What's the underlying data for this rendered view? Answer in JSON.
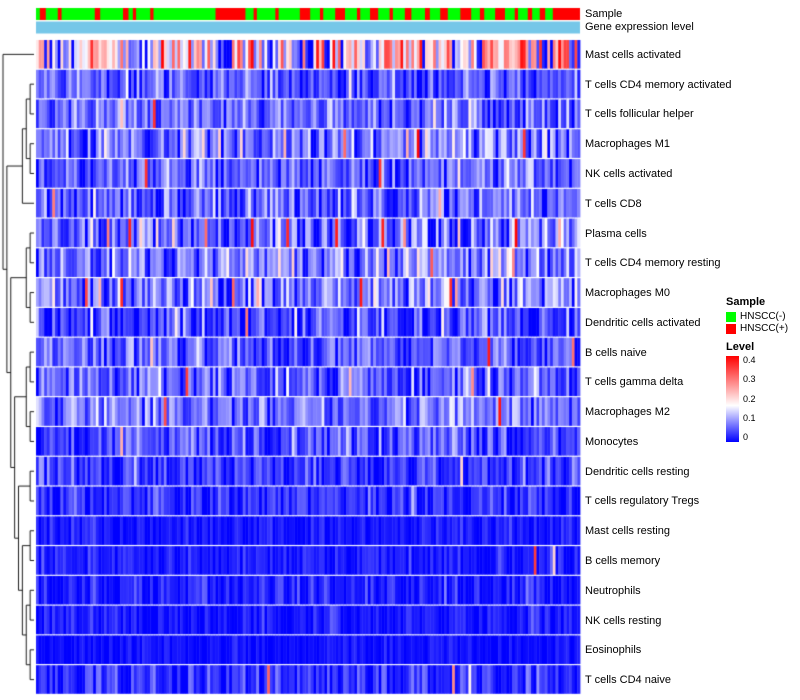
{
  "annotation_bars": {
    "sample_label": "Sample",
    "expression_label": "Gene expression level",
    "expression_color": "#76C7E8"
  },
  "chart_data": {
    "type": "heatmap",
    "n_samples": 200,
    "color_scale": {
      "min": 0,
      "mid": 0.17,
      "max": 0.4,
      "min_color": "#0000FF",
      "mid_color": "#FFFFFF",
      "max_color": "#FF0000"
    },
    "sample_groups": [
      {
        "label": "HNSCC(-)",
        "color": "#00FF00"
      },
      {
        "label": "HNSCC(+)",
        "color": "#FF0000"
      }
    ],
    "annotation_red_segments": [
      [
        0.007,
        0.018
      ],
      [
        0.04,
        0.047
      ],
      [
        0.108,
        0.118
      ],
      [
        0.16,
        0.17
      ],
      [
        0.178,
        0.184
      ],
      [
        0.21,
        0.216
      ],
      [
        0.33,
        0.385
      ],
      [
        0.4,
        0.406
      ],
      [
        0.44,
        0.446
      ],
      [
        0.485,
        0.504
      ],
      [
        0.522,
        0.528
      ],
      [
        0.55,
        0.568
      ],
      [
        0.59,
        0.596
      ],
      [
        0.614,
        0.629
      ],
      [
        0.65,
        0.656
      ],
      [
        0.678,
        0.69
      ],
      [
        0.715,
        0.724
      ],
      [
        0.743,
        0.757
      ],
      [
        0.78,
        0.8
      ],
      [
        0.816,
        0.824
      ],
      [
        0.844,
        0.862
      ],
      [
        0.88,
        0.886
      ],
      [
        0.904,
        0.912
      ],
      [
        0.926,
        0.936
      ],
      [
        0.95,
        1.0
      ]
    ],
    "rows": [
      {
        "label": "Mast cells activated",
        "mean": 0.15,
        "sd": 0.11,
        "spike_prob": 0.22
      },
      {
        "label": "T cells CD4 memory activated",
        "mean": 0.055,
        "sd": 0.04,
        "spike_prob": 0.01
      },
      {
        "label": "T cells follicular helper",
        "mean": 0.07,
        "sd": 0.045,
        "spike_prob": 0.01
      },
      {
        "label": "Macrophages M1",
        "mean": 0.08,
        "sd": 0.05,
        "spike_prob": 0.02
      },
      {
        "label": "NK cells activated",
        "mean": 0.07,
        "sd": 0.045,
        "spike_prob": 0.01
      },
      {
        "label": "T cells CD8",
        "mean": 0.06,
        "sd": 0.05,
        "spike_prob": 0.01
      },
      {
        "label": "Plasma cells",
        "mean": 0.07,
        "sd": 0.06,
        "spike_prob": 0.05
      },
      {
        "label": "T cells CD4 memory resting",
        "mean": 0.09,
        "sd": 0.05,
        "spike_prob": 0.02
      },
      {
        "label": "Macrophages M0",
        "mean": 0.08,
        "sd": 0.06,
        "spike_prob": 0.04
      },
      {
        "label": "Dendritic cells activated",
        "mean": 0.045,
        "sd": 0.045,
        "spike_prob": 0.02
      },
      {
        "label": "B cells naive",
        "mean": 0.06,
        "sd": 0.04,
        "spike_prob": 0.01
      },
      {
        "label": "T cells gamma delta",
        "mean": 0.06,
        "sd": 0.045,
        "spike_prob": 0.01
      },
      {
        "label": "Macrophages M2",
        "mean": 0.08,
        "sd": 0.04,
        "spike_prob": 0.005
      },
      {
        "label": "Monocytes",
        "mean": 0.05,
        "sd": 0.04,
        "spike_prob": 0.005
      },
      {
        "label": "Dendritic cells resting",
        "mean": 0.035,
        "sd": 0.035,
        "spike_prob": 0.005
      },
      {
        "label": "T cells regulatory Tregs",
        "mean": 0.03,
        "sd": 0.03,
        "spike_prob": 0.002
      },
      {
        "label": "Mast cells resting",
        "mean": 0.012,
        "sd": 0.018,
        "spike_prob": 0.002
      },
      {
        "label": "B cells memory",
        "mean": 0.015,
        "sd": 0.02,
        "spike_prob": 0.002
      },
      {
        "label": "Neutrophils",
        "mean": 0.02,
        "sd": 0.025,
        "spike_prob": 0.002
      },
      {
        "label": "NK cells resting",
        "mean": 0.015,
        "sd": 0.02,
        "spike_prob": 0.002
      },
      {
        "label": "Eosinophils",
        "mean": 0.008,
        "sd": 0.012,
        "spike_prob": 0.001
      },
      {
        "label": "T cells CD4 naive",
        "mean": 0.028,
        "sd": 0.03,
        "spike_prob": 0.003
      }
    ],
    "dendrogram": [
      0,
      [
        [
          [
            [
              1,
              2
            ],
            [
              3,
              4
            ]
          ],
          5
        ],
        [
          [
            [
              6,
              7
            ],
            [
              8,
              9
            ]
          ],
          [
            [
              [
                10,
                11
              ],
              [
                12,
                13
              ]
            ],
            [
              [
                14,
                15
              ],
              [
                [
                  16,
                  17
                ],
                [
                  [
                    18,
                    19
                  ],
                  [
                    20,
                    21
                  ]
                ]
              ]
            ]
          ]
        ]
      ]
    ],
    "legend": {
      "sample_title": "Sample",
      "level_title": "Level",
      "level_ticks": [
        "0.4",
        "0.3",
        "0.2",
        "0.1",
        "0"
      ]
    }
  }
}
